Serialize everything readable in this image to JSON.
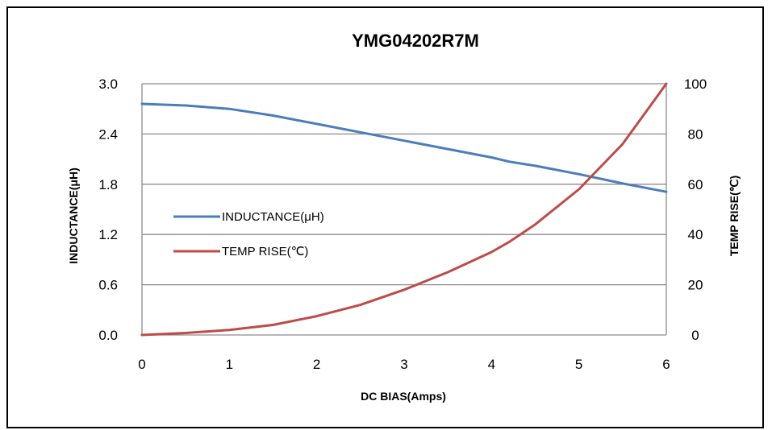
{
  "chart_data": {
    "type": "line",
    "title": "YMG04202R7M",
    "xlabel": "DC BIAS(Amps)",
    "ylabel": "INDUCTANCE(μH)",
    "y2label": "TEMP  RISE(℃)",
    "xlim": [
      0,
      6
    ],
    "ylim": [
      0,
      3.0
    ],
    "y2lim": [
      0,
      100
    ],
    "x_ticks": [
      "0",
      "1",
      "2",
      "3",
      "4",
      "5",
      "6"
    ],
    "y_ticks": [
      "0.0",
      "0.6",
      "1.2",
      "1.8",
      "2.4",
      "3.0"
    ],
    "y2_ticks": [
      "0",
      "20",
      "40",
      "60",
      "80",
      "100"
    ],
    "grid": true,
    "legend_position": "left-middle",
    "series": [
      {
        "name": "INDUCTANCE(μH)",
        "axis": "left",
        "color": "#4a7ebb",
        "x": [
          0,
          0.5,
          1,
          1.5,
          2,
          2.5,
          3,
          3.5,
          4,
          4.2,
          4.5,
          5,
          5.5,
          6
        ],
        "y": [
          2.76,
          2.74,
          2.7,
          2.62,
          2.52,
          2.42,
          2.32,
          2.22,
          2.12,
          2.07,
          2.02,
          1.92,
          1.81,
          1.71
        ]
      },
      {
        "name": "TEMP RISE(℃)",
        "axis": "right",
        "color": "#be4b48",
        "x": [
          0,
          0.5,
          1,
          1.5,
          2,
          2.5,
          3,
          3.5,
          4,
          4.2,
          4.5,
          5,
          5.5,
          6
        ],
        "y": [
          0,
          0.8,
          2,
          4,
          7.5,
          12,
          18,
          25,
          33,
          37,
          44,
          58,
          76,
          100
        ]
      }
    ]
  }
}
